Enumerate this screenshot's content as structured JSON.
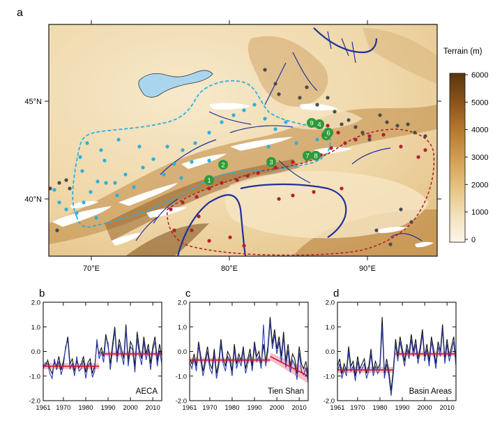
{
  "figure": {
    "panel_a": {
      "label": "a",
      "lon_ticks": [
        "70°E",
        "80°E",
        "90°E"
      ],
      "lat_ticks": [
        "45°N",
        "40°N"
      ],
      "colorbar": {
        "title": "Terrain (m)",
        "ticks": [
          "6000",
          "5000",
          "4000",
          "3000",
          "2000",
          "1000",
          "0"
        ],
        "colors": [
          "#fbf6ec",
          "#f2dfb6",
          "#e6c27f",
          "#d19d52",
          "#b4772e",
          "#8a531a",
          "#5c350c"
        ]
      },
      "stations": [
        "1",
        "2",
        "3",
        "4",
        "5",
        "6",
        "7",
        "8",
        "9"
      ],
      "colors": {
        "lake": "#a9d6ee",
        "river": "#1f2f9c",
        "aeca_boundary": "#2ab0e0",
        "basin_boundary": "#b3202e",
        "station_marker": "#2e9a39",
        "dot_gray": "#4c4c4c"
      }
    },
    "panels_ts": [
      {
        "label": "b",
        "region": "AECA"
      },
      {
        "label": "c",
        "region": "Tien Shan"
      },
      {
        "label": "d",
        "region": "Basin Areas"
      }
    ],
    "ts_axis": {
      "y_ticks": [
        "2.0",
        "1.0",
        "0.0",
        "-1.0",
        "-2.0"
      ],
      "x_ticks": [
        "1961",
        "1970",
        "1980",
        "1990",
        "2000",
        "2010"
      ]
    }
  },
  "chart_data": [
    {
      "type": "line",
      "panel": "b",
      "x_start": 1961,
      "x_end": 2014,
      "ylim": [
        -2.0,
        2.0
      ],
      "series": [
        {
          "color": "#111111",
          "values": [
            -0.55,
            -0.6,
            -0.35,
            -0.7,
            -0.9,
            -0.45,
            -0.6,
            -0.2,
            -0.75,
            -0.4,
            0.1,
            0.6,
            -0.5,
            -0.3,
            -0.8,
            -0.4,
            -0.65,
            -0.5,
            -0.2,
            -0.85,
            -0.45,
            -0.3,
            -0.9,
            -0.6,
            0.3,
            -0.1,
            0.15,
            -0.2,
            0.7,
            0.2,
            -0.5,
            0.3,
            1.0,
            -0.2,
            0.5,
            0.1,
            -0.3,
            1.1,
            -0.4,
            0.4,
            0.2,
            -0.6,
            0.8,
            0.1,
            -0.3,
            0.6,
            -0.1,
            0.3,
            -0.5,
            0.2,
            0.6,
            -0.4,
            0.3,
            -0.2
          ]
        },
        {
          "color": "#2a3aa6",
          "values": [
            -0.7,
            -0.45,
            -0.5,
            -0.9,
            -1.1,
            -0.3,
            -0.75,
            -0.4,
            -0.95,
            -0.6,
            0.2,
            0.45,
            -0.7,
            -0.5,
            -1.0,
            -0.2,
            -0.8,
            -0.7,
            -0.35,
            -1.1,
            -0.6,
            -0.45,
            -1.05,
            -0.8,
            0.5,
            -0.3,
            0.0,
            -0.45,
            0.55,
            0.35,
            -0.75,
            0.1,
            0.85,
            -0.45,
            0.3,
            -0.15,
            -0.55,
            0.9,
            -0.6,
            0.2,
            0.05,
            -0.85,
            0.55,
            -0.15,
            -0.55,
            0.4,
            -0.35,
            0.1,
            -0.75,
            0.05,
            0.4,
            -0.6,
            0.05,
            -0.5
          ]
        }
      ],
      "shifts": [
        {
          "from": 1961,
          "to": 1986,
          "mean": -0.6,
          "band": 0.12
        },
        {
          "from": 1987,
          "to": 2014,
          "mean": -0.1,
          "band": 0.1
        }
      ]
    },
    {
      "type": "line",
      "panel": "c",
      "x_start": 1961,
      "x_end": 2014,
      "ylim": [
        -2.0,
        2.0
      ],
      "series": [
        {
          "color": "#111111",
          "values": [
            -0.3,
            -0.5,
            -0.1,
            -0.6,
            0.4,
            -0.2,
            -0.8,
            -0.3,
            0.2,
            -0.5,
            -0.7,
            0.1,
            -0.9,
            -0.4,
            0.5,
            -0.3,
            -0.6,
            0.0,
            -0.2,
            -0.8,
            0.3,
            -0.5,
            -0.1,
            -0.4,
            0.2,
            -0.7,
            -0.3,
            0.1,
            -0.6,
            0.4,
            -0.2,
            0.0,
            -0.5,
            0.3,
            -0.4,
            0.2,
            1.4,
            0.3,
            0.9,
            0.1,
            0.6,
            -0.2,
            0.8,
            -0.4,
            0.3,
            -0.6,
            -0.1,
            -0.3,
            -0.9,
            0.2,
            -0.5,
            -0.7,
            -0.4,
            -1.0
          ]
        },
        {
          "color": "#2a3aa6",
          "values": [
            -0.45,
            -0.7,
            -0.3,
            -0.8,
            0.25,
            -0.4,
            -1.0,
            -0.5,
            0.0,
            -0.7,
            -0.9,
            -0.1,
            -1.1,
            -0.6,
            0.3,
            -0.5,
            -0.8,
            -0.2,
            -0.4,
            -1.0,
            0.1,
            -0.7,
            -0.3,
            -0.6,
            0.05,
            -0.9,
            -0.5,
            -0.1,
            -0.8,
            0.2,
            -0.4,
            -0.2,
            -0.7,
            1.1,
            -0.6,
            0.0,
            1.2,
            0.1,
            0.7,
            -0.1,
            0.4,
            -0.45,
            0.6,
            -0.65,
            0.05,
            -0.85,
            -0.35,
            -0.55,
            -1.15,
            -0.05,
            -0.8,
            -0.95,
            -0.65,
            -1.25
          ]
        }
      ],
      "shifts": [
        {
          "from": 1961,
          "to": 1997,
          "mean": -0.35,
          "band": 0.1
        },
        {
          "from": 1997,
          "to": 2014,
          "mean_from": -0.2,
          "mean_to": -1.0,
          "band": 0.3
        }
      ]
    },
    {
      "type": "line",
      "panel": "d",
      "x_start": 1961,
      "x_end": 2014,
      "ylim": [
        -2.0,
        2.0
      ],
      "series": [
        {
          "color": "#111111",
          "values": [
            -0.6,
            -0.3,
            -0.9,
            -0.5,
            -0.8,
            0.2,
            -0.6,
            -0.4,
            -1.0,
            -0.2,
            -0.7,
            -0.5,
            -0.3,
            -0.9,
            -0.6,
            0.1,
            -0.8,
            -0.4,
            -0.7,
            -0.5,
            1.4,
            -0.9,
            -0.3,
            -0.8,
            -1.6,
            -0.7,
            0.5,
            -0.2,
            0.6,
            0.1,
            -0.4,
            0.3,
            -0.1,
            0.7,
            0.0,
            0.5,
            -0.3,
            0.2,
            0.9,
            -0.2,
            0.3,
            -0.4,
            0.6,
            0.1,
            -0.5,
            0.4,
            0.0,
            1.1,
            -0.3,
            0.5,
            -0.2,
            0.2,
            0.6,
            -0.4
          ]
        },
        {
          "color": "#2a3aa6",
          "values": [
            -0.8,
            -0.5,
            -1.1,
            -0.7,
            -1.0,
            0.0,
            -0.8,
            -0.6,
            -1.2,
            -0.4,
            -0.9,
            -0.7,
            -0.5,
            -1.1,
            -0.8,
            -0.1,
            -1.0,
            -0.6,
            -0.9,
            -0.7,
            1.0,
            -1.1,
            -0.5,
            -1.0,
            -1.8,
            -0.9,
            0.3,
            -0.4,
            0.4,
            -0.1,
            -0.6,
            0.1,
            -0.3,
            0.5,
            -0.2,
            0.3,
            -0.5,
            0.0,
            0.7,
            -0.4,
            0.1,
            -0.6,
            0.4,
            -0.1,
            -0.7,
            0.2,
            -0.2,
            0.9,
            -0.5,
            0.3,
            -0.4,
            0.0,
            0.4,
            -0.6
          ]
        }
      ],
      "shifts": [
        {
          "from": 1961,
          "to": 1986,
          "mean": -0.75,
          "band": 0.12
        },
        {
          "from": 1987,
          "to": 2014,
          "mean": -0.1,
          "band": 0.1
        }
      ]
    }
  ]
}
